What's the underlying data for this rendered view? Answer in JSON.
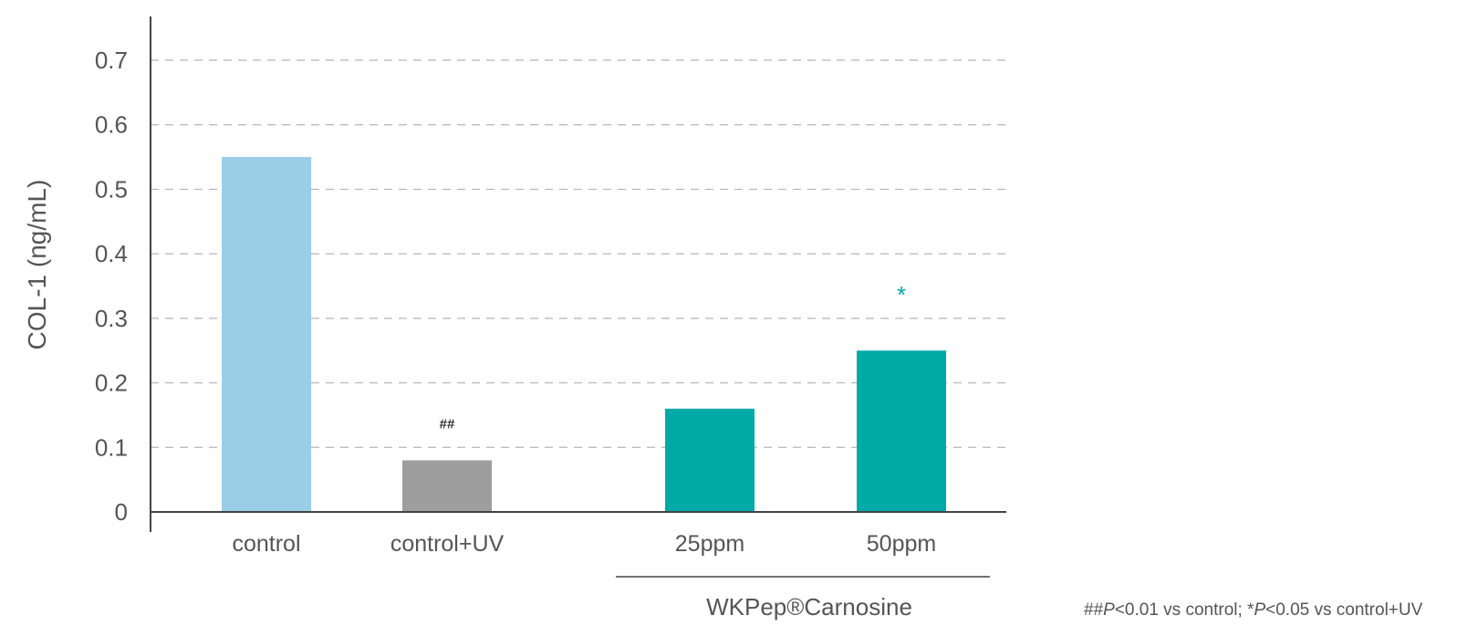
{
  "chart_data": {
    "type": "bar",
    "title": "",
    "xlabel": "",
    "ylabel": "COL-1 (ng/mL)",
    "ylim": [
      0,
      0.7
    ],
    "yticks": [
      "0",
      "0.1",
      "0.2",
      "0.3",
      "0.4",
      "0.5",
      "0.6",
      "0.7"
    ],
    "grid": "horizontal dashed",
    "categories": [
      "control",
      "control+UV",
      "25ppm",
      "50ppm"
    ],
    "values": [
      0.55,
      0.08,
      0.16,
      0.25
    ],
    "colors": [
      "#9acde6",
      "#9e9e9e",
      "#00aba7",
      "#00aba7"
    ],
    "annotations": [
      {
        "category": "control+UV",
        "text": "##",
        "color": "#333333"
      },
      {
        "category": "50ppm",
        "text": "*",
        "color": "#00aba7"
      }
    ],
    "group_label": {
      "text": "WKPep®Carnosine",
      "categories": [
        "25ppm",
        "50ppm"
      ]
    }
  },
  "footnote": {
    "part1_prefix": "##",
    "part1_p": "P",
    "part1_rest": "<0.01 vs control;  ",
    "part2_prefix": "*",
    "part2_p": "P",
    "part2_rest": "<0.05 vs control+UV"
  }
}
